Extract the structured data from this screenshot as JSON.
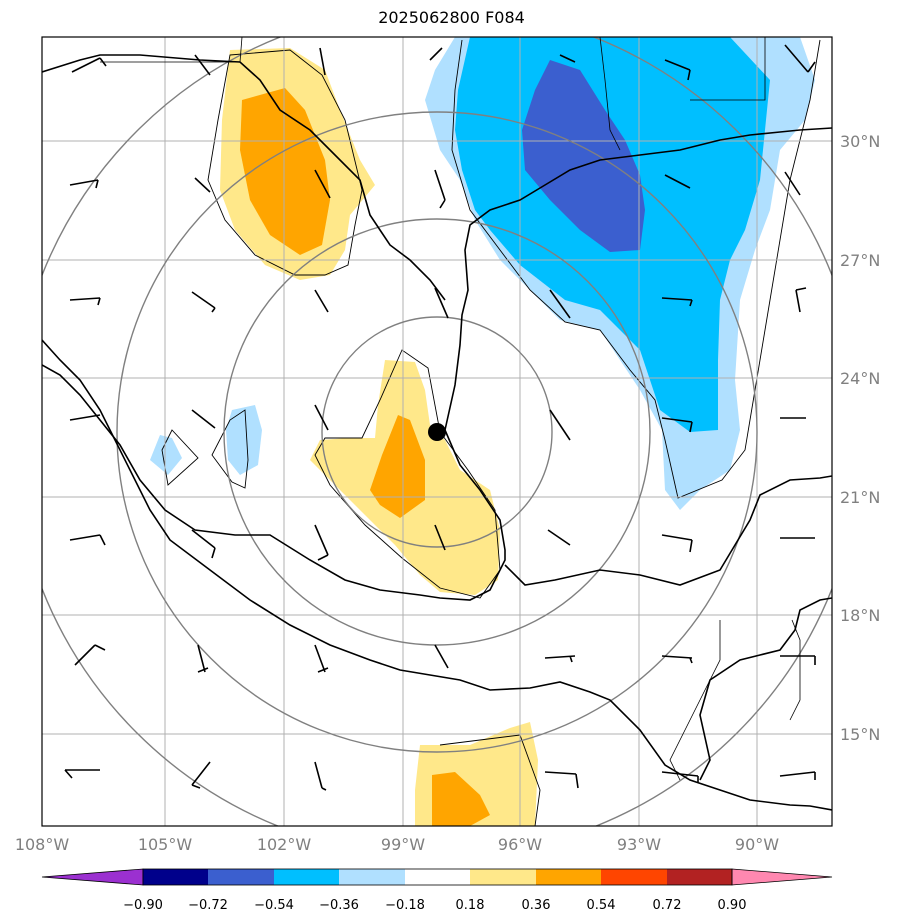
{
  "title": "2025062800 F084",
  "lon_ticks": [
    "108°W",
    "105°W",
    "102°W",
    "99°W",
    "96°W",
    "93°W",
    "90°W"
  ],
  "lat_ticks": [
    "30°N",
    "27°N",
    "24°N",
    "21°N",
    "18°N",
    "15°N"
  ],
  "colorbar": {
    "labels": [
      "−0.90",
      "−0.72",
      "−0.54",
      "−0.36",
      "−0.18",
      "0.18",
      "0.36",
      "0.54",
      "0.72",
      "0.90"
    ],
    "colors": [
      "#9b30d0",
      "#00008b",
      "#3b5fcf",
      "#00bfff",
      "#b0e0ff",
      "#ffffff",
      "#ffe88a",
      "#ffa500",
      "#ff4500",
      "#b22222",
      "#ff88b0"
    ]
  },
  "storm_center": {
    "lon": -98.0,
    "lat": 22.6
  },
  "colors": {
    "grid": "#b0b0b0",
    "range_ring": "#808080",
    "coast": "#000000",
    "contour": "#000000"
  }
}
